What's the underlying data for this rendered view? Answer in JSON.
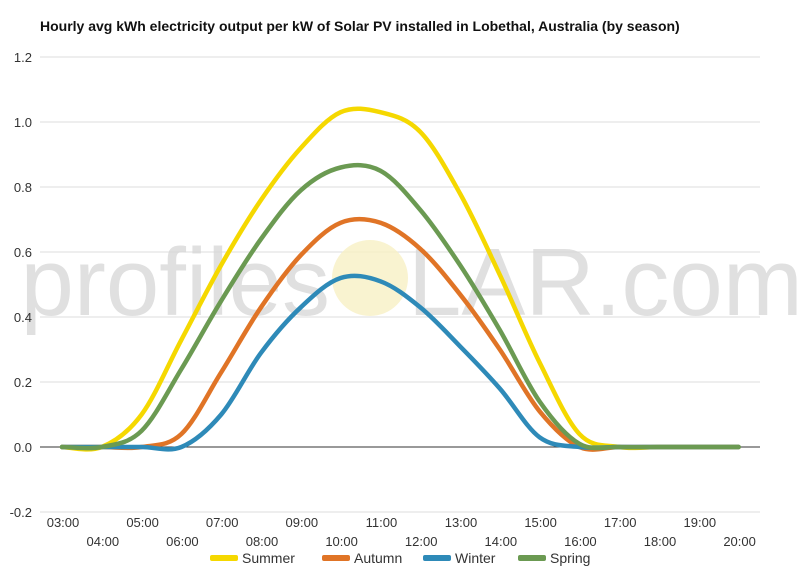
{
  "chart_data": {
    "type": "line",
    "title": "Hourly avg kWh electricity output per kW of Solar PV installed in Lobethal, Australia (by season)",
    "xlabel": "",
    "ylabel": "",
    "x": [
      "03:00",
      "04:00",
      "05:00",
      "06:00",
      "07:00",
      "08:00",
      "09:00",
      "10:00",
      "11:00",
      "12:00",
      "13:00",
      "14:00",
      "15:00",
      "16:00",
      "17:00",
      "18:00",
      "19:00",
      "20:00"
    ],
    "ylim": [
      -0.2,
      1.2
    ],
    "yticks": [
      "-0.2",
      "0.0",
      "0.2",
      "0.4",
      "0.6",
      "0.8",
      "1.0",
      "1.2"
    ],
    "grid": true,
    "legend_position": "bottom",
    "series": [
      {
        "name": "Summer",
        "color": "#f5d800",
        "values": [
          0.0,
          0.0,
          0.1,
          0.33,
          0.56,
          0.76,
          0.92,
          1.03,
          1.03,
          0.97,
          0.78,
          0.53,
          0.26,
          0.04,
          0.0,
          0.0,
          0.0,
          0.0
        ]
      },
      {
        "name": "Autumn",
        "color": "#e07426",
        "values": [
          0.0,
          0.0,
          0.0,
          0.04,
          0.23,
          0.43,
          0.59,
          0.69,
          0.69,
          0.61,
          0.47,
          0.3,
          0.11,
          0.0,
          0.0,
          0.0,
          0.0,
          0.0
        ]
      },
      {
        "name": "Winter",
        "color": "#2e8ab8",
        "values": [
          0.0,
          0.0,
          0.0,
          0.0,
          0.1,
          0.29,
          0.43,
          0.52,
          0.51,
          0.43,
          0.31,
          0.18,
          0.03,
          0.0,
          0.0,
          0.0,
          0.0,
          0.0
        ]
      },
      {
        "name": "Spring",
        "color": "#6b9a52",
        "values": [
          0.0,
          0.0,
          0.05,
          0.24,
          0.45,
          0.64,
          0.79,
          0.86,
          0.85,
          0.73,
          0.56,
          0.36,
          0.14,
          0.01,
          0.0,
          0.0,
          0.0,
          0.0
        ]
      }
    ]
  },
  "watermark": {
    "text_left": "profiles",
    "text_right": "LAR.com",
    "sun_color": "#f7f0c4"
  }
}
